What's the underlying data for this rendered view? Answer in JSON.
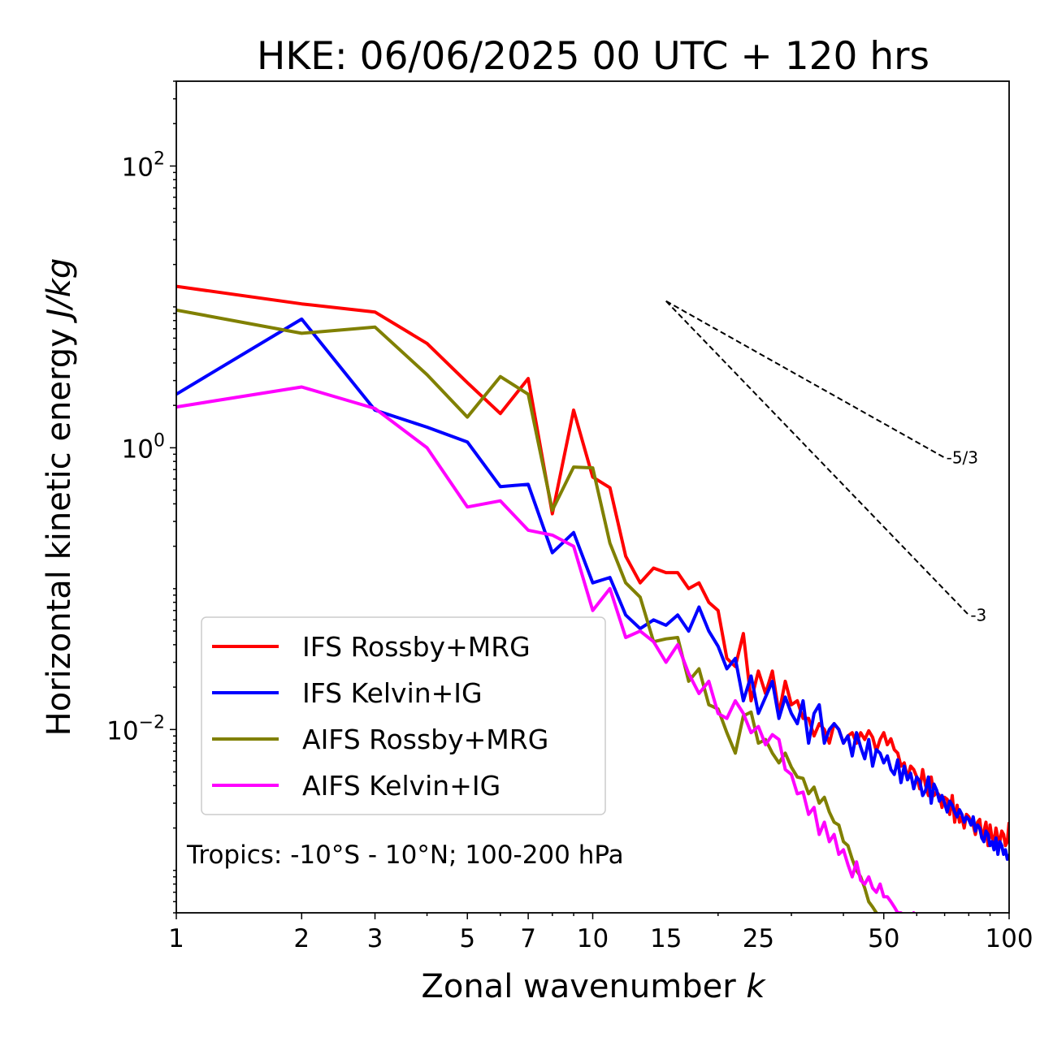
{
  "chart_data": {
    "type": "line",
    "title": "HKE: 06/06/2025 00 UTC + 120 hrs",
    "xlabel": "Zonal wavenumber",
    "xlabel_var": "k",
    "ylabel": "Horizontal kinetic energy",
    "ylabel_unit": "J/kg",
    "xscale": "log",
    "yscale": "log",
    "xlim": [
      1,
      100
    ],
    "ylim": [
      0.0005,
      400
    ],
    "x_ticks": [
      1,
      2,
      3,
      5,
      7,
      10,
      15,
      25,
      50,
      100
    ],
    "x_tick_labels": [
      "1",
      "2",
      "3",
      "5",
      "7",
      "10",
      "15",
      "25",
      "50",
      "100"
    ],
    "y_ticks": [
      {
        "base": "10",
        "exp": "2",
        "value": 100
      },
      {
        "base": "10",
        "exp": "0",
        "value": 1
      },
      {
        "base": "10",
        "exp": "−2",
        "value": 0.01
      }
    ],
    "grid": false,
    "legend_position": "lower-left",
    "annotation": "Tropics: -10°S - 10°N; 100-200 hPa",
    "reference_slopes": [
      {
        "label": "-5/3",
        "x0": 15,
        "y0": 11.0,
        "x1": 70,
        "y1": 0.85
      },
      {
        "label": "-3",
        "x0": 15,
        "y0": 11.0,
        "x1": 80,
        "y1": 0.065
      }
    ],
    "series": [
      {
        "name": "IFS Rossby+MRG",
        "color": "#ff0000",
        "x": [
          1,
          2,
          3,
          4,
          5,
          6,
          7,
          8,
          9,
          10,
          11,
          12,
          13,
          14,
          15,
          16,
          17,
          18,
          19,
          20,
          21,
          22,
          23,
          24,
          25,
          26,
          27,
          28,
          29,
          30,
          31,
          32,
          33,
          34,
          35,
          36,
          37,
          38,
          39,
          40,
          41,
          42,
          43,
          44,
          45,
          46,
          47,
          48,
          49,
          50,
          51,
          52,
          53,
          54,
          55,
          56,
          57,
          58,
          59,
          60,
          61,
          62,
          63,
          64,
          65,
          66,
          67,
          68,
          69,
          70,
          71,
          72,
          73,
          74,
          75,
          76,
          77,
          78,
          79,
          80,
          81,
          82,
          83,
          84,
          85,
          86,
          87,
          88,
          89,
          90,
          91,
          92,
          93,
          94,
          95,
          96,
          97,
          98,
          99,
          100
        ],
        "y": [
          14.0,
          10.5,
          9.2,
          5.5,
          2.9,
          1.75,
          3.1,
          0.34,
          1.85,
          0.62,
          0.52,
          0.17,
          0.11,
          0.14,
          0.13,
          0.13,
          0.1,
          0.11,
          0.08,
          0.07,
          0.032,
          0.028,
          0.048,
          0.016,
          0.026,
          0.018,
          0.026,
          0.013,
          0.022,
          0.015,
          0.016,
          0.012,
          0.012,
          0.009,
          0.011,
          0.01,
          0.008,
          0.011,
          0.01,
          0.008,
          0.009,
          0.0095,
          0.008,
          0.0095,
          0.0085,
          0.0098,
          0.0088,
          0.007,
          0.0085,
          0.0095,
          0.0078,
          0.0086,
          0.0072,
          0.0068,
          0.0055,
          0.0058,
          0.0045,
          0.0055,
          0.0052,
          0.0046,
          0.0038,
          0.0052,
          0.004,
          0.0034,
          0.0046,
          0.0034,
          0.0036,
          0.0034,
          0.0028,
          0.0033,
          0.0032,
          0.0025,
          0.0034,
          0.0022,
          0.0029,
          0.0022,
          0.0024,
          0.002,
          0.0025,
          0.0024,
          0.0022,
          0.0021,
          0.0018,
          0.0022,
          0.0023,
          0.0017,
          0.0019,
          0.0022,
          0.0015,
          0.0021,
          0.0017,
          0.0016,
          0.002,
          0.0017,
          0.0016,
          0.0019,
          0.0018,
          0.0015,
          0.0016,
          0.0022
        ]
      },
      {
        "name": "IFS Kelvin+IG",
        "color": "#0000ff",
        "x": [
          1,
          2,
          3,
          4,
          5,
          6,
          7,
          8,
          9,
          10,
          11,
          12,
          13,
          14,
          15,
          16,
          17,
          18,
          19,
          20,
          21,
          22,
          23,
          24,
          25,
          26,
          27,
          28,
          29,
          30,
          31,
          32,
          33,
          34,
          35,
          36,
          37,
          38,
          39,
          40,
          41,
          42,
          43,
          44,
          45,
          46,
          47,
          48,
          49,
          50,
          51,
          52,
          53,
          54,
          55,
          56,
          57,
          58,
          59,
          60,
          61,
          62,
          63,
          64,
          65,
          66,
          67,
          68,
          69,
          70,
          71,
          72,
          73,
          74,
          75,
          76,
          77,
          78,
          79,
          80,
          81,
          82,
          83,
          84,
          85,
          86,
          87,
          88,
          89,
          90,
          91,
          92,
          93,
          94,
          95,
          96,
          97,
          98,
          99,
          100
        ],
        "y": [
          2.4,
          8.2,
          1.85,
          1.4,
          1.1,
          0.53,
          0.55,
          0.18,
          0.25,
          0.11,
          0.12,
          0.065,
          0.052,
          0.06,
          0.055,
          0.065,
          0.05,
          0.074,
          0.05,
          0.039,
          0.027,
          0.032,
          0.016,
          0.024,
          0.013,
          0.017,
          0.022,
          0.012,
          0.017,
          0.013,
          0.011,
          0.016,
          0.008,
          0.013,
          0.015,
          0.008,
          0.01,
          0.011,
          0.01,
          0.008,
          0.009,
          0.0065,
          0.0095,
          0.0075,
          0.0062,
          0.0085,
          0.0055,
          0.0072,
          0.0068,
          0.0058,
          0.0065,
          0.0052,
          0.0048,
          0.0061,
          0.0042,
          0.0055,
          0.0044,
          0.0049,
          0.0038,
          0.0046,
          0.0043,
          0.0034,
          0.0037,
          0.0046,
          0.003,
          0.0041,
          0.0037,
          0.0031,
          0.0034,
          0.003,
          0.0026,
          0.0031,
          0.0029,
          0.0026,
          0.0024,
          0.0027,
          0.0025,
          0.0022,
          0.0024,
          0.0023,
          0.0021,
          0.0024,
          0.0019,
          0.0021,
          0.002,
          0.0017,
          0.0016,
          0.0019,
          0.0018,
          0.0015,
          0.0016,
          0.0014,
          0.0017,
          0.0013,
          0.0016,
          0.0015,
          0.0013,
          0.0014,
          0.0012,
          0.0013
        ]
      },
      {
        "name": "AIFS Rossby+MRG",
        "color": "#808000",
        "x": [
          1,
          2,
          3,
          4,
          5,
          6,
          7,
          8,
          9,
          10,
          11,
          12,
          13,
          14,
          15,
          16,
          17,
          18,
          19,
          20,
          21,
          22,
          23,
          24,
          25,
          26,
          27,
          28,
          29,
          30,
          31,
          32,
          33,
          34,
          35,
          36,
          37,
          38,
          39,
          40,
          41,
          42,
          43,
          44,
          45,
          46,
          47,
          48,
          49,
          50
        ],
        "y": [
          9.5,
          6.5,
          7.2,
          3.3,
          1.65,
          3.2,
          2.4,
          0.36,
          0.73,
          0.72,
          0.21,
          0.11,
          0.087,
          0.042,
          0.044,
          0.045,
          0.022,
          0.027,
          0.015,
          0.014,
          0.0095,
          0.0068,
          0.0125,
          0.0133,
          0.008,
          0.0085,
          0.0068,
          0.0058,
          0.0068,
          0.0054,
          0.0046,
          0.0045,
          0.0035,
          0.0039,
          0.003,
          0.0033,
          0.0026,
          0.0022,
          0.0021,
          0.0016,
          0.0015,
          0.0012,
          0.001,
          0.0009,
          0.00075,
          0.0006,
          0.00055,
          0.0005,
          0.00045,
          0.0004
        ]
      },
      {
        "name": "AIFS Kelvin+IG",
        "color": "#ff00ff",
        "x": [
          1,
          2,
          3,
          4,
          5,
          6,
          7,
          8,
          9,
          10,
          11,
          12,
          13,
          14,
          15,
          16,
          17,
          18,
          19,
          20,
          21,
          22,
          23,
          24,
          25,
          26,
          27,
          28,
          29,
          30,
          31,
          32,
          33,
          34,
          35,
          36,
          37,
          38,
          39,
          40,
          41,
          42,
          43,
          44,
          45,
          46,
          47,
          48,
          49,
          50,
          51,
          52,
          53,
          54,
          55,
          56,
          57,
          58,
          59,
          60
        ],
        "y": [
          1.95,
          2.7,
          1.9,
          1.0,
          0.38,
          0.42,
          0.26,
          0.24,
          0.2,
          0.07,
          0.1,
          0.045,
          0.05,
          0.042,
          0.03,
          0.04,
          0.025,
          0.018,
          0.022,
          0.013,
          0.012,
          0.016,
          0.013,
          0.0095,
          0.0105,
          0.0078,
          0.0092,
          0.0085,
          0.0052,
          0.0048,
          0.0035,
          0.0036,
          0.0025,
          0.0028,
          0.0018,
          0.0022,
          0.0016,
          0.0018,
          0.0013,
          0.0014,
          0.0011,
          0.0009,
          0.00115,
          0.00085,
          0.0008,
          0.0009,
          0.00075,
          0.0007,
          0.0008,
          0.00065,
          0.00065,
          0.0006,
          0.00055,
          0.0005,
          0.0005,
          0.00045,
          0.0004,
          0.00045,
          0.0005,
          0.00045
        ]
      }
    ]
  }
}
